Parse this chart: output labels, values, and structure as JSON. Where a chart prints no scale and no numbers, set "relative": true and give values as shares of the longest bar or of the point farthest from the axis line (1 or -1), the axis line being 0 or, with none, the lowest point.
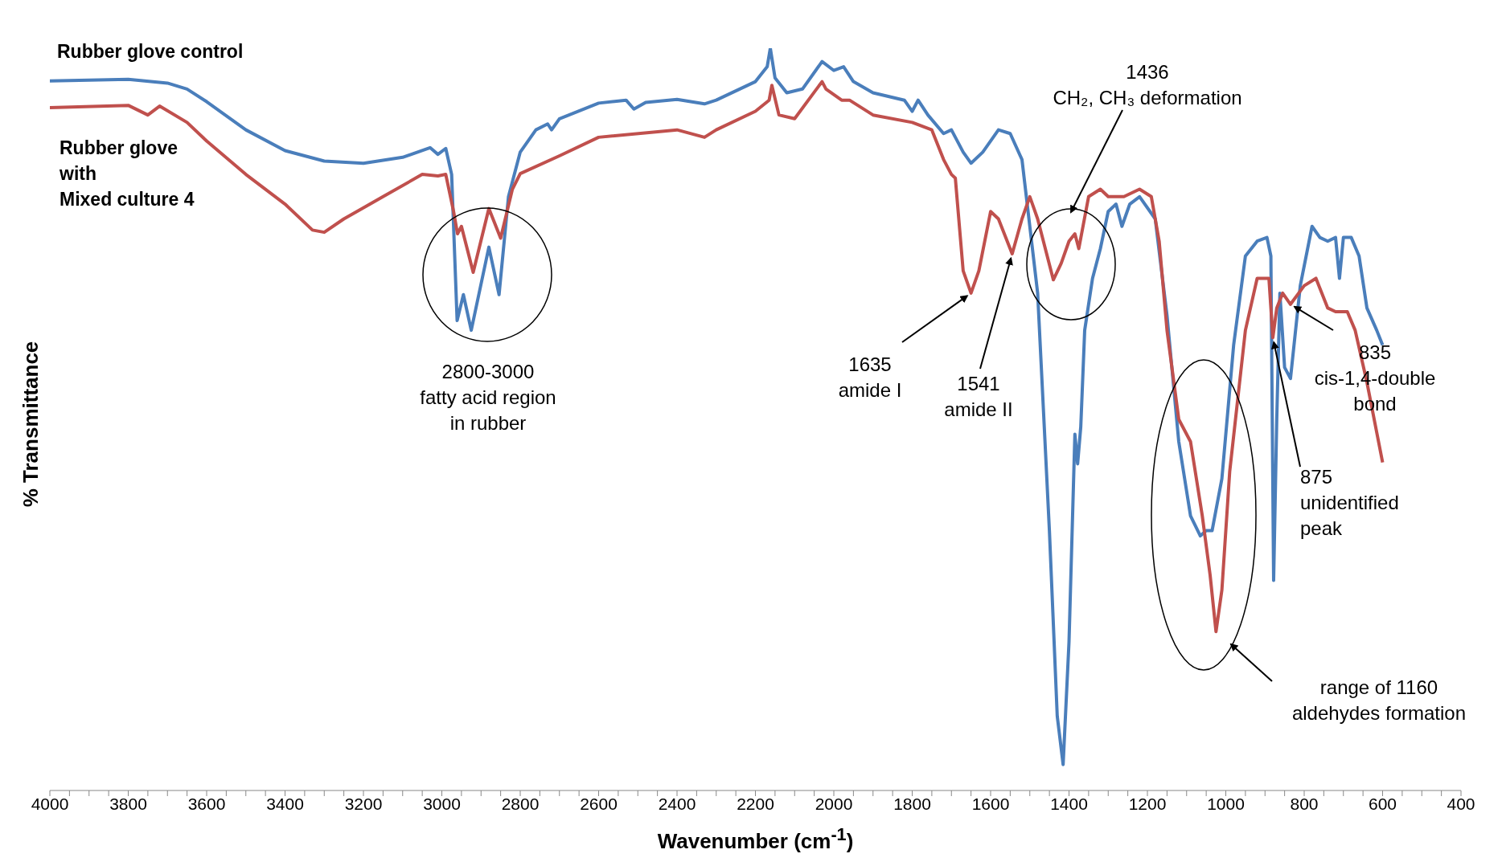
{
  "chart_data": {
    "type": "line",
    "relative": true,
    "xlabel": "Wavenumber (cm$^{-1}$)",
    "ylabel": "% Transmittance",
    "xlim": [
      4000,
      400
    ],
    "xticks": [
      4000,
      {
        "value": 3950,
        "label": null
      },
      {
        "value": 3900,
        "label": null
      },
      {
        "value": 3850,
        "label": null
      },
      3800,
      {
        "value": 3750,
        "label": null
      },
      {
        "value": 3700,
        "label": null
      },
      {
        "value": 3650,
        "label": null
      },
      3600,
      {
        "value": 3550,
        "label": null
      },
      {
        "value": 3500,
        "label": null
      },
      {
        "value": 3450,
        "label": null
      },
      3400,
      {
        "value": 3350,
        "label": null
      },
      {
        "value": 3300,
        "label": null
      },
      {
        "value": 3250,
        "label": null
      },
      3200,
      {
        "value": 3150,
        "label": null
      },
      {
        "value": 3100,
        "label": null
      },
      {
        "value": 3050,
        "label": null
      },
      3000,
      {
        "value": 2950,
        "label": null
      },
      {
        "value": 2900,
        "label": null
      },
      {
        "value": 2850,
        "label": null
      },
      2800,
      {
        "value": 2750,
        "label": null
      },
      {
        "value": 2700,
        "label": null
      },
      {
        "value": 2650,
        "label": null
      },
      2600,
      {
        "value": 2550,
        "label": null
      },
      {
        "value": 2500,
        "label": null
      },
      {
        "value": 2450,
        "label": null
      },
      2400,
      {
        "value": 2350,
        "label": null
      },
      {
        "value": 2300,
        "label": null
      },
      {
        "value": 2250,
        "label": null
      },
      2200,
      {
        "value": 2150,
        "label": null
      },
      {
        "value": 2100,
        "label": null
      },
      {
        "value": 2050,
        "label": null
      },
      2000,
      {
        "value": 1950,
        "label": null
      },
      {
        "value": 1900,
        "label": null
      },
      {
        "value": 1850,
        "label": null
      },
      1800,
      {
        "value": 1750,
        "label": null
      },
      {
        "value": 1700,
        "label": null
      },
      {
        "value": 1650,
        "label": null
      },
      1600,
      {
        "value": 1550,
        "label": null
      },
      {
        "value": 1500,
        "label": null
      },
      {
        "value": 1450,
        "label": null
      },
      1400,
      {
        "value": 1350,
        "label": null
      },
      {
        "value": 1300,
        "label": null
      },
      {
        "value": 1250,
        "label": null
      },
      1200,
      {
        "value": 1150,
        "label": null
      },
      {
        "value": 1100,
        "label": null
      },
      {
        "value": 1050,
        "label": null
      },
      1000,
      {
        "value": 950,
        "label": null
      },
      {
        "value": 900,
        "label": null
      },
      {
        "value": 850,
        "label": null
      },
      800,
      {
        "value": 750,
        "label": null
      },
      {
        "value": 700,
        "label": null
      },
      {
        "value": 650,
        "label": null
      },
      600,
      {
        "value": 550,
        "label": null
      },
      {
        "value": 500,
        "label": null
      },
      {
        "value": 450,
        "label": null
      },
      400
    ],
    "legend": false,
    "grid": false,
    "marker": "none",
    "line_style": "solid",
    "series": [
      {
        "name": "Rubber glove control",
        "color": "#4a7ebb",
        "x": [
          4000,
          3800,
          3700,
          3650,
          3600,
          3500,
          3400,
          3300,
          3200,
          3100,
          3030,
          3010,
          2990,
          2975,
          2961,
          2945,
          2925,
          2880,
          2854,
          2830,
          2800,
          2760,
          2730,
          2720,
          2700,
          2600,
          2530,
          2510,
          2480,
          2400,
          2330,
          2300,
          2200,
          2170,
          2162,
          2150,
          2120,
          2080,
          2030,
          2000,
          1975,
          1950,
          1900,
          1820,
          1800,
          1785,
          1760,
          1720,
          1700,
          1670,
          1650,
          1620,
          1580,
          1550,
          1520,
          1480,
          1450,
          1430,
          1415,
          1400,
          1385,
          1378,
          1370,
          1360,
          1340,
          1320,
          1300,
          1280,
          1265,
          1245,
          1220,
          1180,
          1150,
          1120,
          1090,
          1065,
          1050,
          1035,
          1010,
          980,
          950,
          920,
          895,
          885,
          878,
          870,
          862,
          850,
          835,
          810,
          780,
          760,
          740,
          720,
          710,
          700,
          680,
          660,
          640,
          615,
          600
        ],
        "values": [
          0.956,
          0.958,
          0.953,
          0.945,
          0.928,
          0.89,
          0.862,
          0.848,
          0.845,
          0.853,
          0.866,
          0.857,
          0.865,
          0.83,
          0.633,
          0.668,
          0.62,
          0.732,
          0.668,
          0.8,
          0.86,
          0.89,
          0.898,
          0.89,
          0.905,
          0.926,
          0.93,
          0.918,
          0.927,
          0.931,
          0.925,
          0.93,
          0.955,
          0.975,
          1,
          0.96,
          0.94,
          0.945,
          0.982,
          0.97,
          0.975,
          0.955,
          0.94,
          0.93,
          0.915,
          0.93,
          0.91,
          0.885,
          0.89,
          0.86,
          0.845,
          0.86,
          0.89,
          0.885,
          0.85,
          0.67,
          0.35,
          0.1,
          0.035,
          0.2,
          0.48,
          0.44,
          0.49,
          0.62,
          0.69,
          0.73,
          0.78,
          0.79,
          0.76,
          0.79,
          0.8,
          0.77,
          0.64,
          0.47,
          0.37,
          0.343,
          0.35,
          0.35,
          0.42,
          0.6,
          0.72,
          0.74,
          0.745,
          0.72,
          0.283,
          0.5,
          0.67,
          0.57,
          0.555,
          0.68,
          0.76,
          0.745,
          0.74,
          0.745,
          0.69,
          0.745,
          0.745,
          0.72,
          0.65,
          0.62,
          0.6
        ]
      },
      {
        "name": "Rubber glove\nwith\nMixed culture 4",
        "color": "#c0504d",
        "x": [
          4000,
          3800,
          3750,
          3720,
          3650,
          3600,
          3500,
          3400,
          3330,
          3300,
          3250,
          3150,
          3050,
          3010,
          2990,
          2970,
          2960,
          2950,
          2920,
          2880,
          2850,
          2820,
          2800,
          2700,
          2600,
          2400,
          2330,
          2300,
          2200,
          2165,
          2158,
          2140,
          2100,
          2030,
          2020,
          1980,
          1960,
          1900,
          1800,
          1750,
          1720,
          1700,
          1690,
          1670,
          1650,
          1630,
          1600,
          1580,
          1545,
          1520,
          1500,
          1480,
          1440,
          1420,
          1400,
          1385,
          1375,
          1350,
          1320,
          1300,
          1260,
          1220,
          1190,
          1170,
          1150,
          1120,
          1090,
          1060,
          1040,
          1025,
          1010,
          990,
          950,
          920,
          890,
          880,
          870,
          855,
          835,
          800,
          770,
          740,
          720,
          690,
          670,
          640,
          600
        ],
        "values": [
          0.92,
          0.923,
          0.91,
          0.922,
          0.9,
          0.875,
          0.83,
          0.79,
          0.755,
          0.752,
          0.77,
          0.8,
          0.83,
          0.828,
          0.83,
          0.78,
          0.75,
          0.76,
          0.698,
          0.784,
          0.744,
          0.81,
          0.831,
          0.855,
          0.88,
          0.89,
          0.88,
          0.89,
          0.915,
          0.93,
          0.95,
          0.91,
          0.905,
          0.955,
          0.945,
          0.93,
          0.93,
          0.91,
          0.9,
          0.89,
          0.85,
          0.83,
          0.825,
          0.7,
          0.67,
          0.7,
          0.78,
          0.77,
          0.723,
          0.77,
          0.8,
          0.77,
          0.688,
          0.71,
          0.74,
          0.75,
          0.73,
          0.8,
          0.81,
          0.8,
          0.8,
          0.81,
          0.8,
          0.74,
          0.62,
          0.5,
          0.47,
          0.37,
          0.29,
          0.214,
          0.27,
          0.43,
          0.62,
          0.69,
          0.69,
          0.61,
          0.65,
          0.67,
          0.655,
          0.68,
          0.69,
          0.65,
          0.645,
          0.645,
          0.62,
          0.55,
          0.442
        ]
      }
    ],
    "annotations": [
      "2800-3000\nfatty acid region\nin rubber",
      {
        "text": "1635\namide I",
        "x": 1650,
        "y": 0.67
      },
      {
        "text": "1541\namide II",
        "x": 1545,
        "y": 0.723
      },
      "1436\nCH₂, CH₃ deformation",
      {
        "text": "835\ncis-1,4-double\nbond",
        "x": 835,
        "y": 0.655
      },
      {
        "text": "875\nunidentified\npeak",
        "x": 880,
        "y": 0.61
      },
      "range of 1160\naldehydes formation"
    ]
  }
}
